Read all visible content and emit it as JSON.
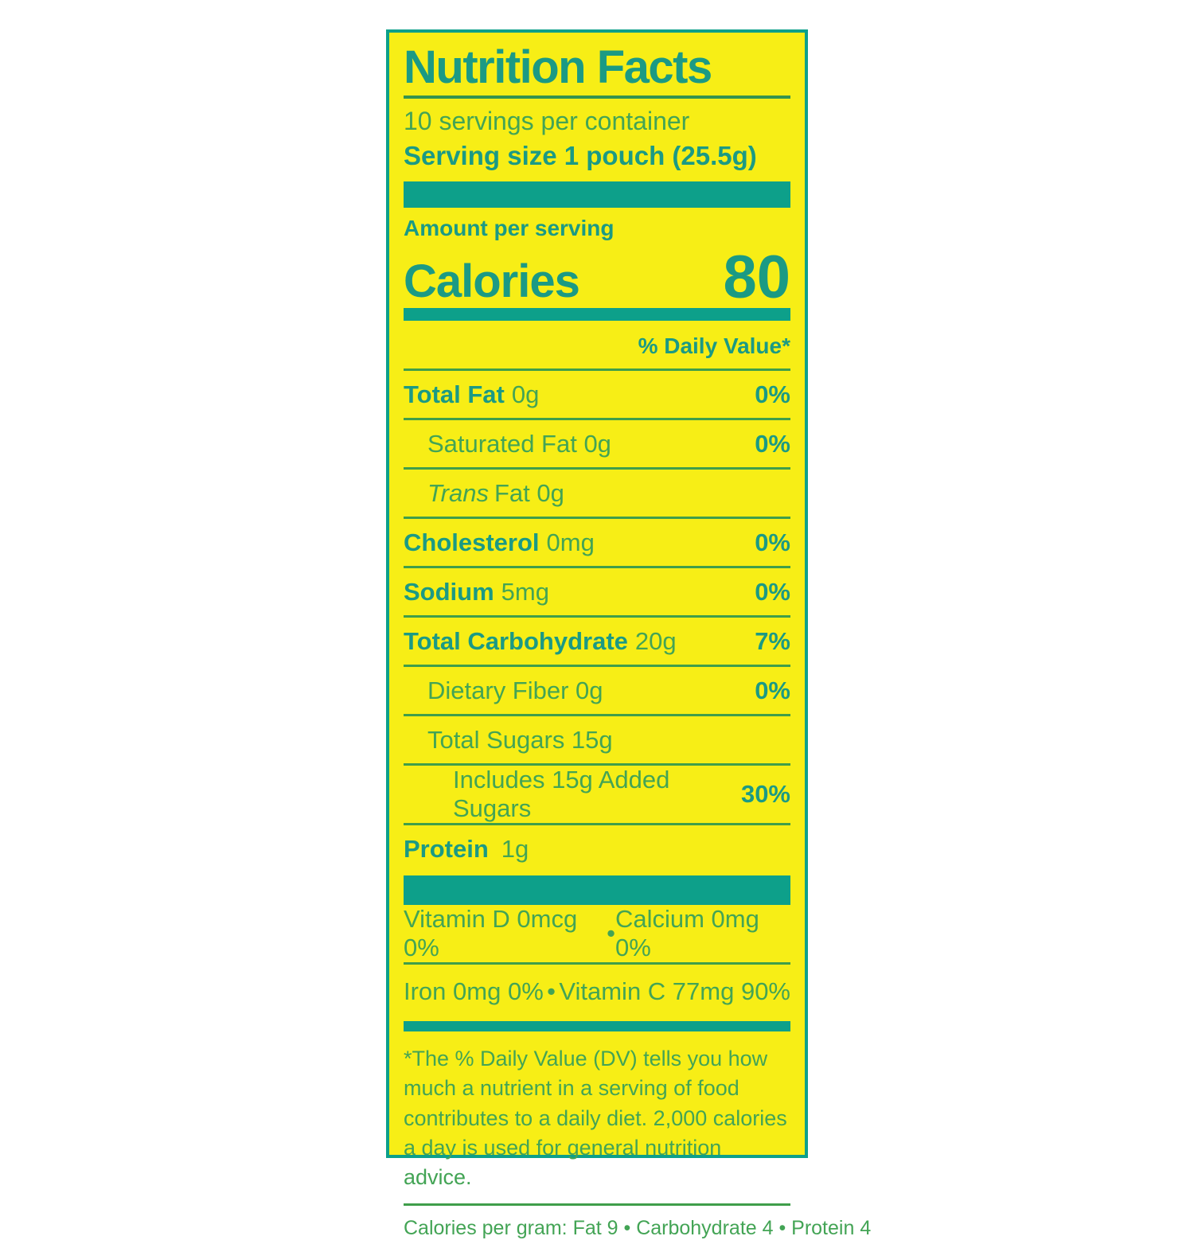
{
  "colors": {
    "background_yellow": "#f7ee16",
    "teal_bars_border": "#0da08a",
    "teal_bold_text": "#1b9a84",
    "green_regular_text": "#43a455",
    "green_rules": "#3f9e4a"
  },
  "label": {
    "title": "Nutrition Facts",
    "servings_per_container": "10 servings per container",
    "serving_size": "Serving size 1 pouch (25.5g)",
    "amount_per_serving": "Amount per serving",
    "calories_label": "Calories",
    "calories_value": "80",
    "daily_value_header": "% Daily Value*",
    "rows": [
      {
        "bold": "Total Fat",
        "rest": "0g",
        "dv": "0%"
      },
      {
        "rest": "Saturated Fat 0g",
        "dv": "0%"
      },
      {
        "italic": "Trans",
        "rest": "Fat 0g",
        "dv": ""
      },
      {
        "bold": "Cholesterol",
        "rest": "0mg",
        "dv": "0%"
      },
      {
        "bold": "Sodium",
        "rest": "5mg",
        "dv": "0%"
      },
      {
        "bold": "Total Carbohydrate",
        "rest": "20g",
        "dv": "7%"
      },
      {
        "rest": "Dietary Fiber 0g",
        "dv": "0%"
      },
      {
        "rest": "Total Sugars 15g",
        "dv": ""
      },
      {
        "rest": "Includes 15g Added Sugars",
        "dv": "30%"
      },
      {
        "bold": "Protein",
        "rest": "1g",
        "dv": ""
      }
    ],
    "vitamins": [
      {
        "left": "Vitamin D  0mcg 0%",
        "bullet": "•",
        "right": "Calcium 0mg 0%"
      },
      {
        "left": "Iron 0mg 0%",
        "bullet": "•",
        "right": "Vitamin C  77mg  90%"
      }
    ],
    "footnote": "*The % Daily Value (DV) tells you how much a nutrient in a serving of food contributes to a daily diet. 2,000 calories a day is used for general nutrition advice.",
    "calories_per_gram": "Calories per gram:  Fat 9  •  Carbohydrate 4  •  Protein 4"
  }
}
